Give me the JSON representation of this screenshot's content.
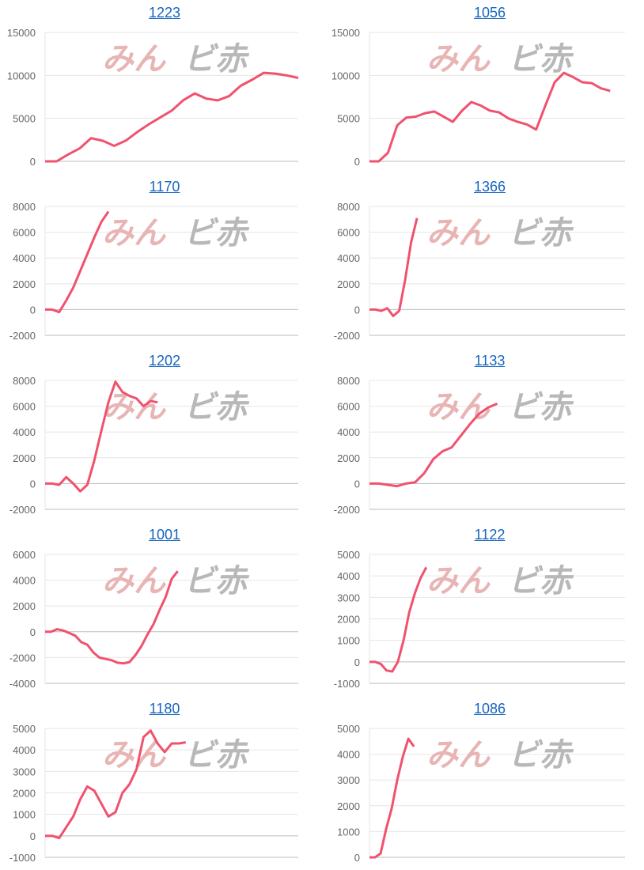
{
  "watermark": {
    "text_pink": "みん",
    "text_gray": "ビ赤"
  },
  "colors": {
    "line": "#f0526e",
    "grid": "#e6e6e6",
    "axis": "#bbbbbb",
    "title": "#1565c0",
    "watermark_pink": "#e8b4b4",
    "watermark_gray": "#b8b8b8"
  },
  "chart_data": [
    {
      "type": "line",
      "title": "1223",
      "ylim": [
        0,
        15000
      ],
      "yticks": [
        0,
        5000,
        10000,
        15000
      ],
      "xlim": [
        0,
        22
      ],
      "values": [
        0,
        0,
        800,
        1500,
        2700,
        2400,
        1800,
        2400,
        3400,
        4300,
        5100,
        5900,
        7100,
        7900,
        7300,
        7100,
        7600,
        8800,
        9500,
        10300,
        10200,
        10000,
        9700
      ]
    },
    {
      "type": "line",
      "title": "1056",
      "ylim": [
        0,
        15000
      ],
      "yticks": [
        0,
        5000,
        10000,
        15000
      ],
      "xlim": [
        0,
        27.6
      ],
      "values": [
        0,
        0,
        1000,
        4200,
        5100,
        5200,
        5600,
        5800,
        5200,
        4600,
        5900,
        6900,
        6500,
        5900,
        5700,
        5000,
        4600,
        4300,
        3700,
        6500,
        9200,
        10300,
        9800,
        9200,
        9100,
        8500,
        8200
      ]
    },
    {
      "type": "line",
      "title": "1170",
      "ylim": [
        -2000,
        8000
      ],
      "yticks": [
        -2000,
        0,
        2000,
        4000,
        6000,
        8000
      ],
      "xlim": [
        0,
        36
      ],
      "values": [
        0,
        0,
        -200,
        700,
        1700,
        3000,
        4300,
        5600,
        6800,
        7600
      ]
    },
    {
      "type": "line",
      "title": "1366",
      "ylim": [
        -2000,
        8000
      ],
      "yticks": [
        -2000,
        0,
        2000,
        4000,
        6000,
        8000
      ],
      "xlim": [
        0,
        43
      ],
      "values": [
        0,
        0,
        -100,
        100,
        -500,
        -100,
        2300,
        5200,
        7100
      ]
    },
    {
      "type": "line",
      "title": "1202",
      "ylim": [
        -2000,
        8000
      ],
      "yticks": [
        -2000,
        0,
        2000,
        4000,
        6000,
        8000
      ],
      "xlim": [
        0,
        36
      ],
      "values": [
        0,
        0,
        -100,
        500,
        0,
        -600,
        -100,
        1800,
        4100,
        6300,
        7900,
        7100,
        6800,
        6600,
        6000,
        6400,
        6300
      ]
    },
    {
      "type": "line",
      "title": "1133",
      "ylim": [
        -2000,
        8000
      ],
      "yticks": [
        -2000,
        0,
        2000,
        4000,
        6000,
        8000
      ],
      "xlim": [
        0,
        28
      ],
      "values": [
        0,
        0,
        -100,
        -200,
        0,
        100,
        800,
        1900,
        2500,
        2800,
        3700,
        4600,
        5400,
        5900,
        6200
      ]
    },
    {
      "type": "line",
      "title": "1001",
      "ylim": [
        -4000,
        6000
      ],
      "yticks": [
        -4000,
        -2000,
        0,
        2000,
        4000,
        6000
      ],
      "xlim": [
        0,
        42
      ],
      "values": [
        0,
        0,
        200,
        100,
        -100,
        -300,
        -800,
        -1000,
        -1600,
        -2000,
        -2100,
        -2200,
        -2400,
        -2450,
        -2350,
        -1800,
        -1100,
        -200,
        600,
        1700,
        2700,
        4100,
        4700
      ]
    },
    {
      "type": "line",
      "title": "1122",
      "ylim": [
        -1000,
        5000
      ],
      "yticks": [
        -1000,
        0,
        1000,
        2000,
        3000,
        4000,
        5000
      ],
      "xlim": [
        0,
        45
      ],
      "values": [
        0,
        0,
        -100,
        -400,
        -450,
        0,
        1000,
        2300,
        3200,
        3900,
        4400
      ]
    },
    {
      "type": "line",
      "title": "1180",
      "ylim": [
        -1000,
        5000
      ],
      "yticks": [
        -1000,
        0,
        1000,
        2000,
        3000,
        4000,
        5000
      ],
      "xlim": [
        0,
        36
      ],
      "values": [
        0,
        0,
        -100,
        400,
        900,
        1700,
        2300,
        2100,
        1500,
        900,
        1100,
        2000,
        2400,
        3100,
        4600,
        4900,
        4300,
        3900,
        4300,
        4300,
        4350
      ]
    },
    {
      "type": "line",
      "title": "1086",
      "ylim": [
        0,
        5000
      ],
      "yticks": [
        0,
        1000,
        2000,
        3000,
        4000,
        5000
      ],
      "xlim": [
        0,
        46
      ],
      "values": [
        0,
        0,
        150,
        1100,
        1900,
        3000,
        3900,
        4600,
        4300
      ]
    }
  ]
}
